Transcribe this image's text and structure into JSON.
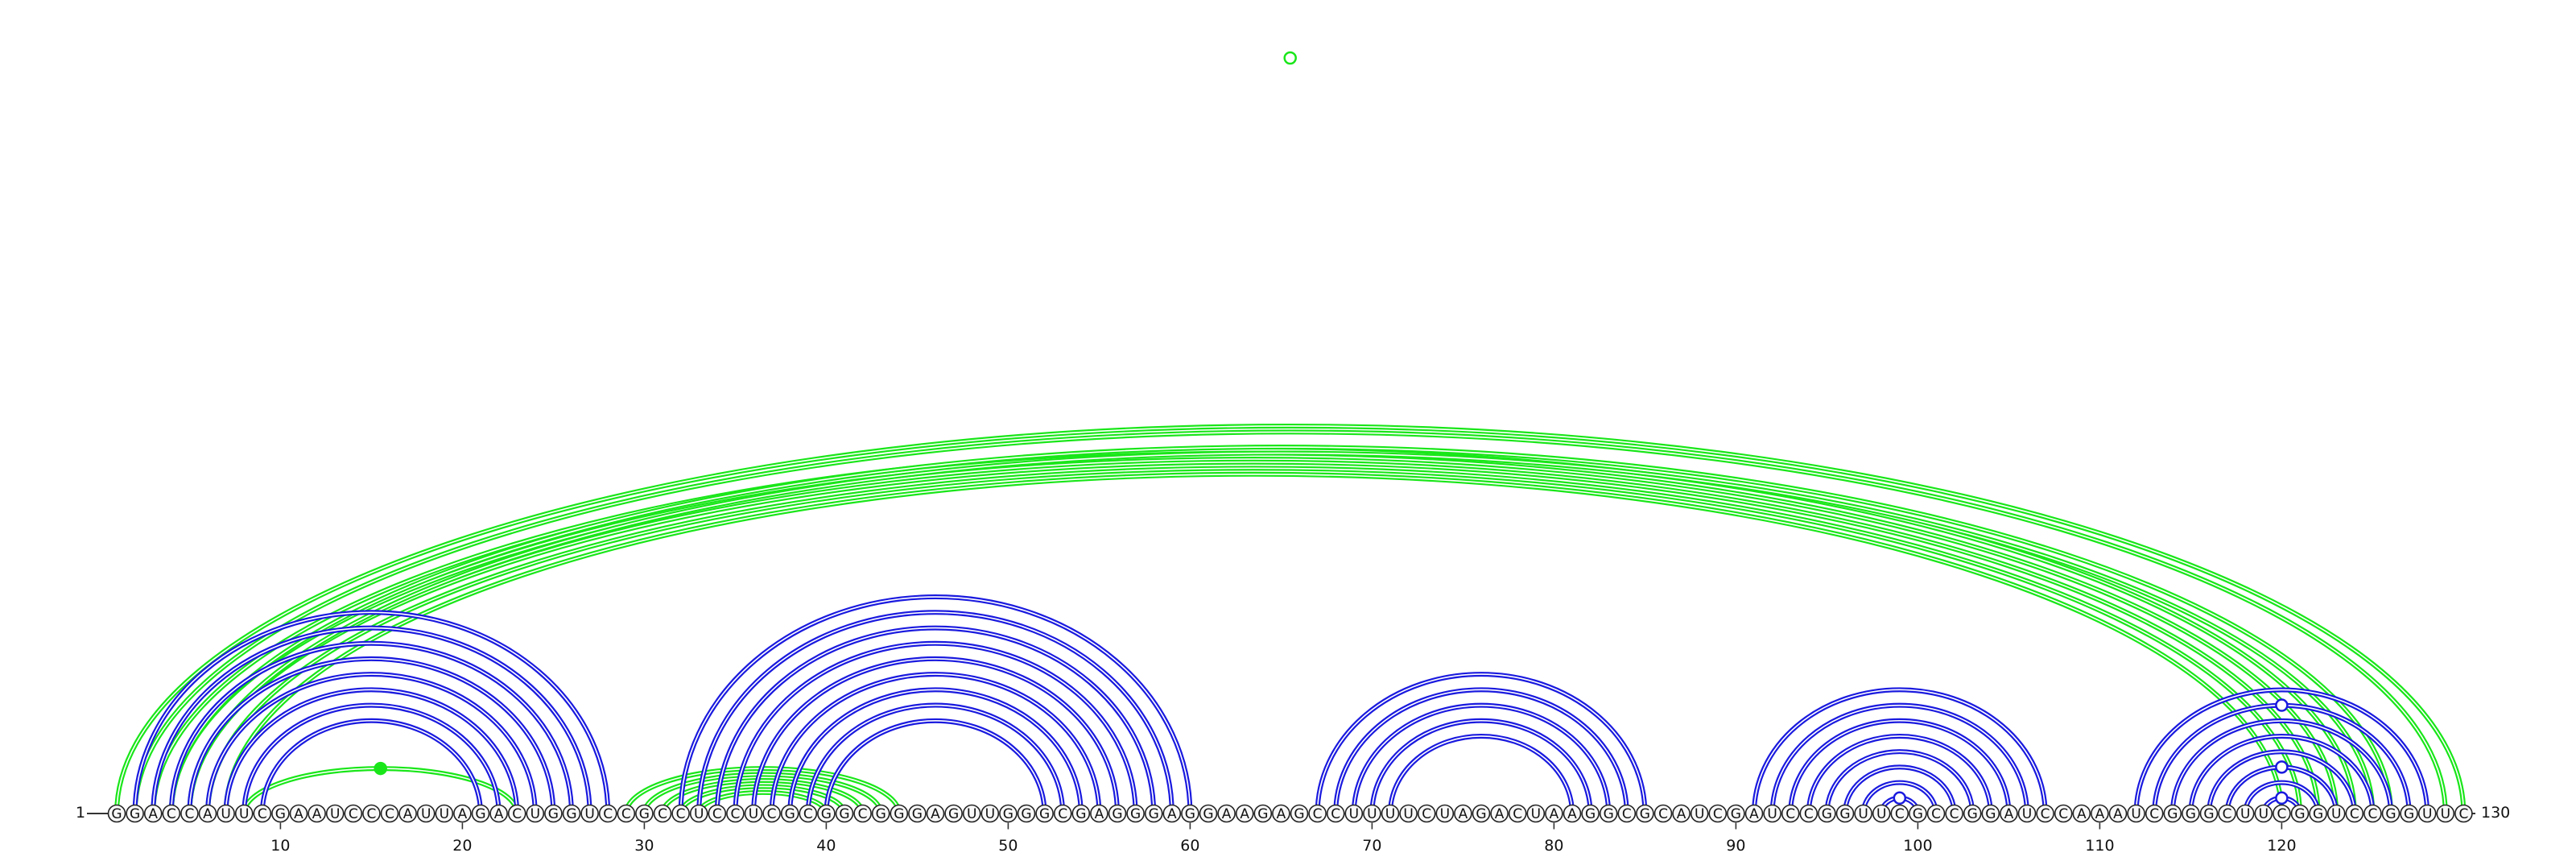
{
  "sequence": "GGACCAUUCGAAUCCCAUUAGACUGGUCCGCCUCCUCGCGGCGGGAGUUGGGCGAGGGAGGAAGAGCCUUUUCUAGACUAAGGCGCAUCGAUCCGGUUCGCCGGAUCCAAAUCGGGCUUCGGUCCGGUUC",
  "start_label": "1",
  "end_label": "130",
  "tick_positions": [
    10,
    20,
    30,
    40,
    50,
    60,
    70,
    80,
    90,
    100,
    110,
    120
  ],
  "colors": {
    "blue_arcs": "#1a1adf",
    "green_arcs": "#19e619",
    "backbone": "#333333"
  },
  "chart_data": {
    "type": "arc-diagram",
    "length": 130,
    "blue_pairs": [
      [
        2,
        28
      ],
      [
        3,
        27
      ],
      [
        4,
        26
      ],
      [
        5,
        25
      ],
      [
        6,
        24
      ],
      [
        7,
        23
      ],
      [
        8,
        22
      ],
      [
        9,
        21
      ],
      [
        32,
        60
      ],
      [
        33,
        59
      ],
      [
        34,
        58
      ],
      [
        35,
        57
      ],
      [
        36,
        56
      ],
      [
        37,
        55
      ],
      [
        38,
        54
      ],
      [
        39,
        53
      ],
      [
        40,
        52
      ],
      [
        67,
        85
      ],
      [
        68,
        84
      ],
      [
        69,
        83
      ],
      [
        70,
        82
      ],
      [
        71,
        81
      ],
      [
        91,
        107
      ],
      [
        92,
        106
      ],
      [
        93,
        105
      ],
      [
        94,
        104
      ],
      [
        95,
        103
      ],
      [
        96,
        102
      ],
      [
        97,
        101
      ],
      [
        98,
        100
      ],
      [
        112,
        128
      ],
      [
        113,
        127
      ],
      [
        114,
        126
      ],
      [
        115,
        125
      ],
      [
        116,
        124
      ],
      [
        117,
        123
      ],
      [
        118,
        122
      ],
      [
        119,
        121
      ]
    ],
    "green_pairs": [
      [
        1,
        130
      ],
      [
        2,
        129
      ],
      [
        3,
        124
      ],
      [
        4,
        123
      ],
      [
        5,
        122
      ],
      [
        6,
        121
      ],
      [
        7,
        120
      ],
      [
        4,
        126
      ],
      [
        5,
        125
      ],
      [
        8,
        23
      ],
      [
        29,
        44
      ],
      [
        30,
        43
      ],
      [
        31,
        42
      ],
      [
        32,
        41
      ],
      [
        33,
        40
      ]
    ],
    "markers": [
      {
        "type": "hollow",
        "color": "green",
        "position": 65.5,
        "level": "top"
      },
      {
        "type": "filled",
        "color": "green",
        "position": 15.5,
        "level": "arc-8-23"
      },
      {
        "type": "hollow",
        "color": "blue",
        "position": 99,
        "level": "arc-98-100"
      },
      {
        "type": "hollow",
        "color": "blue",
        "position": 120,
        "level": "arc-119-121"
      },
      {
        "type": "hollow",
        "color": "blue",
        "position": 120,
        "level": "arc-117-123"
      },
      {
        "type": "hollow",
        "color": "blue",
        "position": 120,
        "level": "arc-113-127"
      }
    ]
  }
}
